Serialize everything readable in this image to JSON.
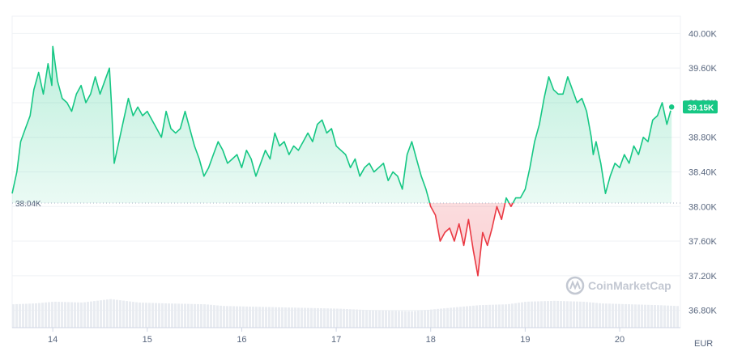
{
  "chart_data": {
    "type": "line",
    "currency_unit": "EUR",
    "ylim": [
      36.6,
      40.2
    ],
    "y_tick_labels": [
      "40.00K",
      "39.60K",
      "39.20K",
      "38.80K",
      "38.40K",
      "38.00K",
      "37.60K",
      "37.20K",
      "36.80K"
    ],
    "y_tick_values": [
      40.0,
      39.6,
      39.2,
      38.8,
      38.4,
      38.0,
      37.6,
      37.2,
      36.8
    ],
    "x_tick_labels": [
      "14",
      "15",
      "16",
      "17",
      "18",
      "19",
      "20"
    ],
    "x_tick_values": [
      14,
      15,
      16,
      17,
      18,
      19,
      20
    ],
    "xlim": [
      13.57,
      20.6
    ],
    "baseline_value": 38.04,
    "baseline_label": "38.04K",
    "current_value": 39.15,
    "current_label": "39.15K",
    "watermark": "CoinMarketCap",
    "colors": {
      "up": "#16c784",
      "down": "#ea3943"
    },
    "price_series": {
      "x": [
        13.57,
        13.62,
        13.66,
        13.71,
        13.76,
        13.8,
        13.85,
        13.9,
        13.95,
        13.99,
        14.0,
        14.05,
        14.1,
        14.15,
        14.2,
        14.25,
        14.3,
        14.35,
        14.4,
        14.45,
        14.5,
        14.55,
        14.6,
        14.62,
        14.65,
        14.7,
        14.75,
        14.8,
        14.85,
        14.9,
        14.95,
        15.0,
        15.05,
        15.1,
        15.15,
        15.2,
        15.25,
        15.3,
        15.35,
        15.4,
        15.45,
        15.5,
        15.55,
        15.6,
        15.65,
        15.7,
        15.75,
        15.8,
        15.85,
        15.9,
        15.95,
        16.0,
        16.05,
        16.1,
        16.15,
        16.2,
        16.25,
        16.3,
        16.35,
        16.4,
        16.45,
        16.5,
        16.55,
        16.6,
        16.65,
        16.7,
        16.75,
        16.8,
        16.85,
        16.9,
        16.95,
        17.0,
        17.05,
        17.1,
        17.15,
        17.2,
        17.25,
        17.3,
        17.35,
        17.4,
        17.45,
        17.5,
        17.55,
        17.6,
        17.65,
        17.7,
        17.75,
        17.8,
        17.85,
        17.9,
        17.95,
        18.0,
        18.05,
        18.1,
        18.15,
        18.2,
        18.25,
        18.3,
        18.35,
        18.4,
        18.45,
        18.5,
        18.55,
        18.6,
        18.65,
        18.7,
        18.75,
        18.8,
        18.85,
        18.9,
        18.95,
        19.0,
        19.05,
        19.1,
        19.15,
        19.2,
        19.25,
        19.3,
        19.35,
        19.4,
        19.45,
        19.5,
        19.55,
        19.6,
        19.65,
        19.7,
        19.72,
        19.75,
        19.8,
        19.85,
        19.9,
        19.95,
        20.0,
        20.05,
        20.1,
        20.15,
        20.2,
        20.25,
        20.3,
        20.35,
        20.4,
        20.45,
        20.5,
        20.55
      ],
      "y": [
        38.15,
        38.4,
        38.75,
        38.9,
        39.05,
        39.35,
        39.55,
        39.3,
        39.65,
        39.4,
        39.85,
        39.45,
        39.25,
        39.2,
        39.1,
        39.3,
        39.4,
        39.2,
        39.3,
        39.5,
        39.3,
        39.45,
        39.6,
        39.2,
        38.5,
        38.75,
        39.0,
        39.25,
        39.05,
        39.15,
        39.05,
        39.1,
        39.0,
        38.9,
        38.8,
        39.1,
        38.9,
        38.85,
        38.9,
        39.1,
        38.9,
        38.7,
        38.55,
        38.35,
        38.45,
        38.6,
        38.75,
        38.65,
        38.5,
        38.55,
        38.6,
        38.45,
        38.65,
        38.55,
        38.35,
        38.5,
        38.65,
        38.55,
        38.85,
        38.7,
        38.75,
        38.6,
        38.7,
        38.65,
        38.75,
        38.85,
        38.75,
        38.95,
        39.0,
        38.85,
        38.9,
        38.7,
        38.65,
        38.6,
        38.45,
        38.55,
        38.35,
        38.45,
        38.5,
        38.4,
        38.45,
        38.5,
        38.3,
        38.4,
        38.35,
        38.2,
        38.6,
        38.75,
        38.55,
        38.35,
        38.2,
        38.0,
        37.9,
        37.6,
        37.7,
        37.75,
        37.6,
        37.8,
        37.55,
        37.85,
        37.5,
        37.2,
        37.7,
        37.55,
        37.75,
        38.0,
        37.85,
        38.1,
        38.0,
        38.1,
        38.1,
        38.2,
        38.45,
        38.75,
        38.95,
        39.25,
        39.5,
        39.35,
        39.3,
        39.3,
        39.5,
        39.35,
        39.2,
        39.25,
        39.1,
        38.8,
        38.6,
        38.75,
        38.5,
        38.15,
        38.35,
        38.5,
        38.45,
        38.6,
        38.5,
        38.7,
        38.6,
        38.8,
        38.75,
        39.0,
        39.05,
        39.2,
        38.95,
        39.15
      ]
    },
    "volume_series": {
      "x": [
        13.57,
        13.8,
        14.0,
        14.3,
        14.6,
        14.75,
        14.9,
        15.2,
        15.6,
        15.8,
        16.2,
        16.6,
        17.0,
        17.4,
        17.8,
        18.0,
        18.2,
        18.5,
        18.8,
        19.0,
        19.3,
        19.6,
        19.8,
        20.1,
        20.4,
        20.6
      ],
      "y": [
        36.87,
        36.88,
        36.9,
        36.89,
        36.93,
        36.91,
        36.89,
        36.88,
        36.87,
        36.85,
        36.84,
        36.83,
        36.82,
        36.8,
        36.79,
        36.81,
        36.83,
        36.86,
        36.87,
        36.9,
        36.91,
        36.9,
        36.88,
        36.87,
        36.86,
        36.85
      ]
    }
  }
}
